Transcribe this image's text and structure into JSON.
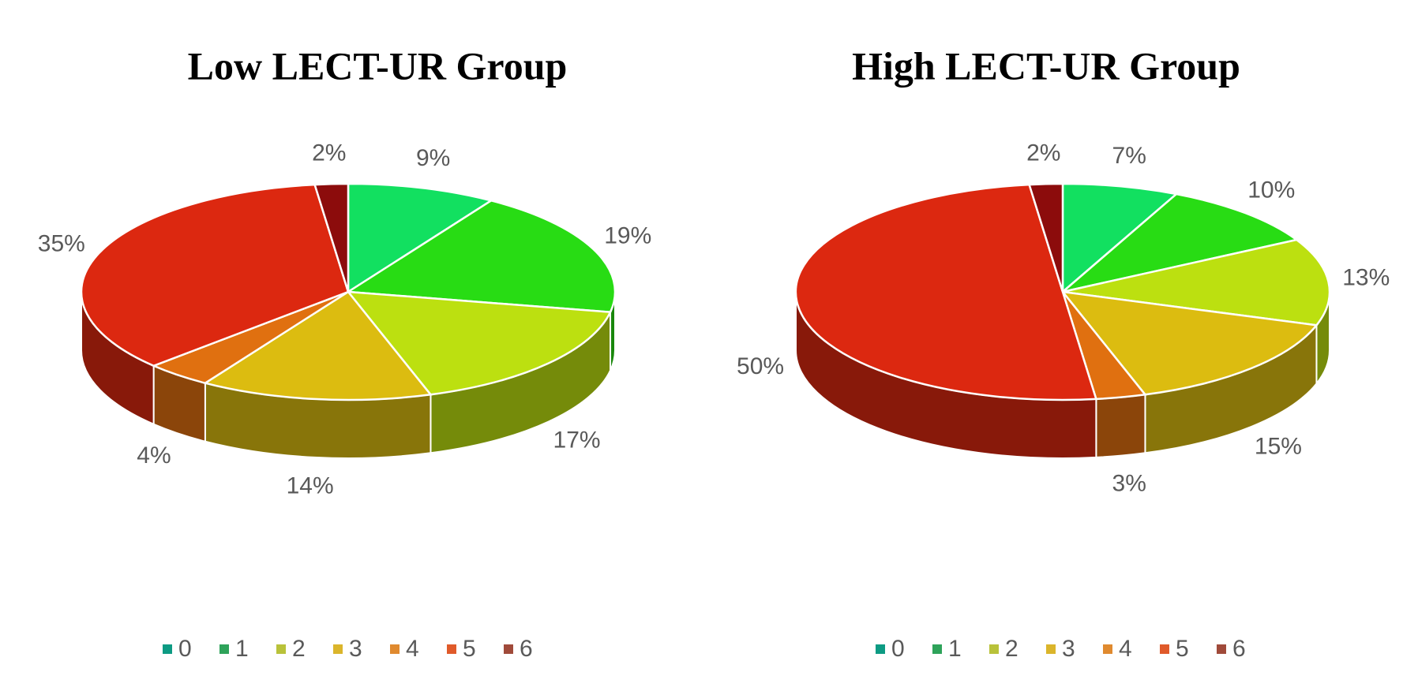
{
  "chart_data": [
    {
      "type": "pie3d",
      "title": "Low LECT-UR Group",
      "categories": [
        "0",
        "1",
        "2",
        "3",
        "4",
        "5",
        "6"
      ],
      "values": [
        9,
        19,
        17,
        14,
        4,
        35,
        2
      ],
      "value_labels": [
        "9%",
        "19%",
        "17%",
        "14%",
        "4%",
        "35%",
        "2%"
      ],
      "colors": [
        "#12e060",
        "#28dc14",
        "#bce010",
        "#dcbc10",
        "#e07010",
        "#dc2810",
        "#8c0c0c"
      ],
      "legend_colors": [
        "#0d9b83",
        "#2ea35a",
        "#b9c23a",
        "#dbb52b",
        "#e08a2f",
        "#e05a2a",
        "#a04a3a"
      ],
      "legend": "bottom"
    },
    {
      "type": "pie3d",
      "title": "High LECT-UR Group",
      "categories": [
        "0",
        "1",
        "2",
        "3",
        "4",
        "5",
        "6"
      ],
      "values": [
        7,
        10,
        13,
        15,
        3,
        50,
        2
      ],
      "value_labels": [
        "7%",
        "10%",
        "13%",
        "15%",
        "3%",
        "50%",
        "2%"
      ],
      "colors": [
        "#12e060",
        "#28dc14",
        "#bce010",
        "#dcbc10",
        "#e07010",
        "#dc2810",
        "#8c0c0c"
      ],
      "legend_colors": [
        "#0d9b83",
        "#2ea35a",
        "#b9c23a",
        "#dbb52b",
        "#e08a2f",
        "#e05a2a",
        "#a04a3a"
      ],
      "legend": "bottom"
    }
  ]
}
